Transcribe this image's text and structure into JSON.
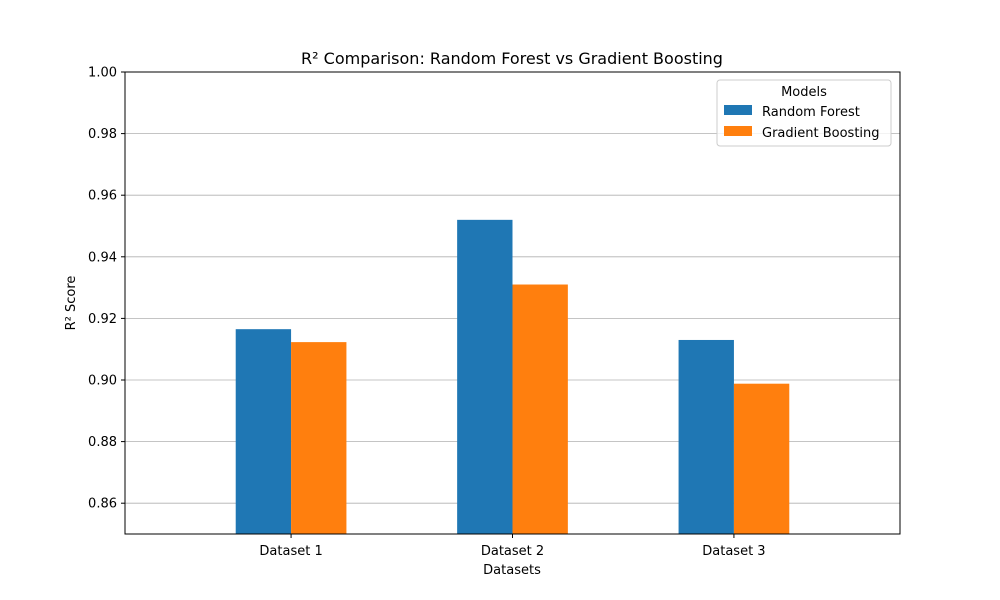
{
  "chart_data": {
    "type": "bar",
    "title": "R² Comparison: Random Forest vs Gradient Boosting",
    "xlabel": "Datasets",
    "ylabel": "R² Score",
    "categories": [
      "Dataset 1",
      "Dataset 2",
      "Dataset 3"
    ],
    "series": [
      {
        "name": "Random Forest",
        "color": "#1f77b4",
        "values": [
          0.9165,
          0.952,
          0.913
        ]
      },
      {
        "name": "Gradient Boosting",
        "color": "#ff7f0e",
        "values": [
          0.9123,
          0.931,
          0.8988
        ]
      }
    ],
    "ylim": [
      0.85,
      1.0
    ],
    "yticks": [
      "0.86",
      "0.88",
      "0.90",
      "0.92",
      "0.94",
      "0.96",
      "0.98",
      "1.00"
    ],
    "grid": "horizontal",
    "legend": {
      "title": "Models",
      "position": "top-right"
    }
  }
}
